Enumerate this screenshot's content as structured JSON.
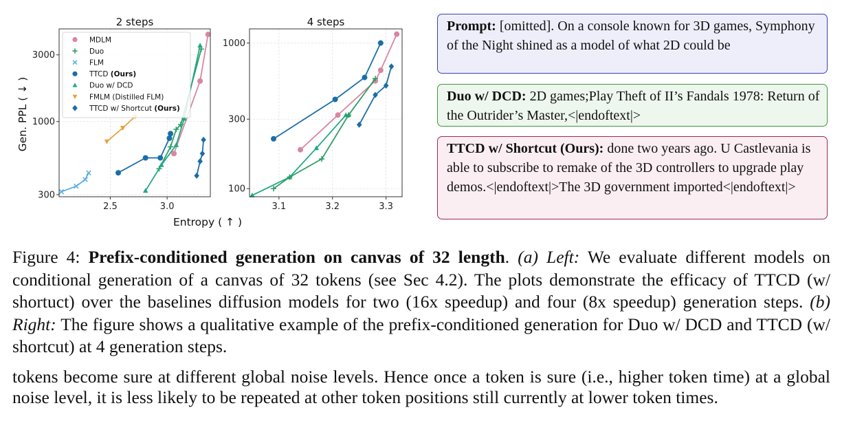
{
  "chart_data": [
    {
      "type": "line",
      "title": "2 steps",
      "xlabel": "Entropy ( ↑ )",
      "ylabel": "Gen. PPL ( ↓ )",
      "xlim": [
        2.05,
        3.38
      ],
      "ylim": [
        290,
        4600
      ],
      "yscale": "log",
      "xticks": [
        2.5,
        3.0
      ],
      "xtick_labels": [
        "2.5",
        "3.0"
      ],
      "yticks": [
        300,
        1000,
        3000
      ],
      "ytick_labels": [
        "300",
        "1000",
        "3000"
      ],
      "grid": true,
      "legend_position": "top-left",
      "series": [
        {
          "name": "MDLM",
          "color": "#d7879f",
          "marker": "circle",
          "x": [
            3.06,
            3.29,
            3.36
          ],
          "y": [
            590,
            1950,
            4200
          ]
        },
        {
          "name": "Duo",
          "color": "#2e9e66",
          "marker": "plus",
          "x": [
            2.93,
            3.03,
            3.08,
            3.12,
            3.3
          ],
          "y": [
            460,
            660,
            880,
            950,
            3300
          ]
        },
        {
          "name": "FLM",
          "color": "#5aaee6",
          "marker": "x",
          "x": [
            2.07,
            2.2,
            2.28,
            2.31
          ],
          "y": [
            315,
            345,
            385,
            430
          ]
        },
        {
          "name": "TTCD",
          "name_suffix": "(Ours)",
          "color": "#1a6ea8",
          "marker": "circle",
          "x": [
            2.57,
            2.81,
            2.94,
            3.02,
            3.03
          ],
          "y": [
            430,
            550,
            550,
            760,
            820
          ]
        },
        {
          "name": "Duo w/ DCD",
          "color": "#22a884",
          "marker": "triangle-up",
          "x": [
            2.81,
            2.95,
            3.08,
            3.15,
            3.29
          ],
          "y": [
            320,
            490,
            680,
            1050,
            3500
          ]
        },
        {
          "name": "FMLM (Distilled FLM)",
          "color": "#e6a23a",
          "marker": "triangle-down",
          "x": [
            2.47,
            2.61,
            2.72
          ],
          "y": [
            720,
            900,
            1090
          ]
        },
        {
          "name": "TTCD w/ Shortcut",
          "name_suffix": "(Ours)",
          "color": "#1a6ea8",
          "marker": "diamond",
          "x": [
            3.26,
            3.29,
            3.31,
            3.32
          ],
          "y": [
            410,
            520,
            590,
            740
          ]
        }
      ]
    },
    {
      "type": "line",
      "title": "4 steps",
      "xlim": [
        3.045,
        3.33
      ],
      "ylim": [
        88,
        1250
      ],
      "yscale": "log",
      "xticks": [
        3.1,
        3.2,
        3.3
      ],
      "xtick_labels": [
        "3.1",
        "3.2",
        "3.3"
      ],
      "yticks": [
        100,
        300,
        1000
      ],
      "ytick_labels": [
        "100",
        "300",
        "1000"
      ],
      "grid": true,
      "series": [
        {
          "name": "MDLM",
          "color": "#d7879f",
          "marker": "circle",
          "x": [
            3.14,
            3.21,
            3.28,
            3.29,
            3.32
          ],
          "y": [
            185,
            320,
            550,
            650,
            1150
          ]
        },
        {
          "name": "Duo w/ DCD",
          "color": "#22a884",
          "marker": "triangle-up",
          "x": [
            3.05,
            3.12,
            3.17,
            3.225,
            3.23
          ],
          "y": [
            90,
            120,
            190,
            320,
            320
          ]
        },
        {
          "name": "Duo",
          "color": "#2e9e66",
          "marker": "plus",
          "x": [
            3.09,
            3.12,
            3.18,
            3.23,
            3.28
          ],
          "y": [
            100,
            120,
            160,
            320,
            570
          ]
        },
        {
          "name": "TTCD",
          "color": "#1a6ea8",
          "marker": "circle",
          "x": [
            3.09,
            3.205,
            3.26,
            3.29
          ],
          "y": [
            220,
            410,
            580,
            1000
          ]
        },
        {
          "name": "TTCD w/ Shortcut",
          "color": "#1a6ea8",
          "marker": "diamond",
          "x": [
            3.25,
            3.28,
            3.3,
            3.31
          ],
          "y": [
            275,
            440,
            510,
            690
          ]
        }
      ]
    }
  ],
  "boxes": [
    {
      "label": "Prompt:",
      "text": " [omitted]. On a console known for 3D games, Symphony of the Night shined as a model of what 2D could be",
      "border": "#3b3fb5",
      "bg": "#eeeefb"
    },
    {
      "label": "Duo w/ DCD:",
      "text": " 2D games;Play Theft of II’s Fandals 1978: Return of the Outrider’s Master,<|endoftext|>",
      "border": "#3a9a3a",
      "bg": "#eef7ee"
    },
    {
      "label": "TTCD w/ Shortcut (Ours):",
      "text": " done two years ago. U Castlevania is able to subscribe to remake of the 3D controllers to upgrade play demos.<|endoftext|>The 3D government imported<|endoftext|>",
      "border": "#9c2a4a",
      "bg": "#fbeef2"
    }
  ],
  "caption": {
    "prefix": "Figure 4: ",
    "bold": "Prefix-conditioned generation on canvas of 32 length",
    "sep1": ". ",
    "a_label": "(a) Left:",
    "a_text": " We evaluate different models on conditional generation of a canvas of 32 tokens (see Sec 4.2). The plots demonstrate the efficacy of TTCD (w/ shortuct) over the baselines diffusion models for two (16x speedup) and four (8x speedup) generation steps. ",
    "b_label": "(b) Right:",
    "b_text": " The figure shows a qualitative example of the prefix-conditioned generation for Duo w/ DCD and TTCD (w/ shortcut) at 4 generation steps."
  },
  "body_text": "tokens become sure at different global noise levels. Hence once a token is sure (i.e., higher token time) at a global noise level, it is less likely to be repeated at other token positions still currently at lower token times."
}
